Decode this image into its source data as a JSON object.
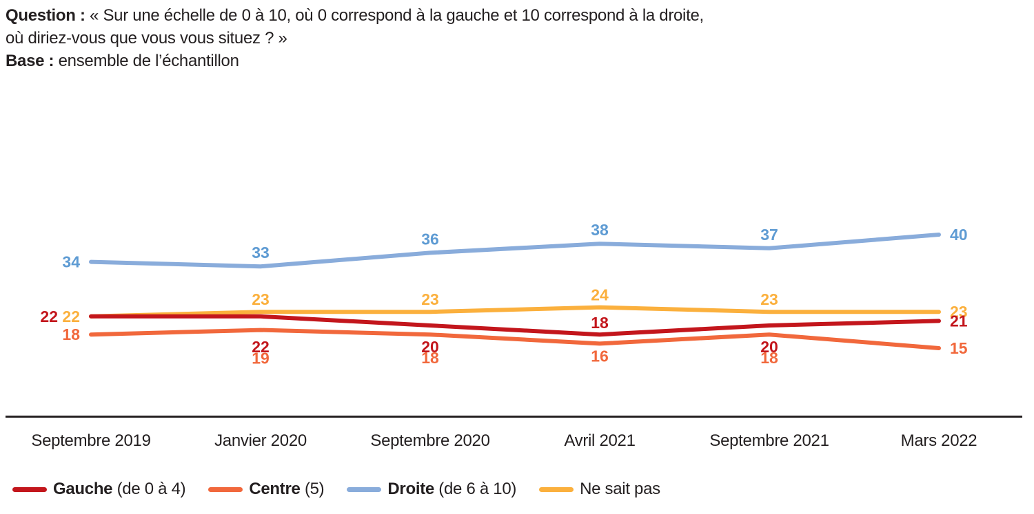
{
  "header": {
    "question_label": "Question :",
    "question_line1": " « Sur une échelle de 0 à 10, où 0 correspond à la gauche et 10 correspond à la droite,",
    "question_line2": "où diriez-vous que vous vous situez ? »",
    "base_label": "Base :",
    "base_text": " ensemble de l’échantillon"
  },
  "colors": {
    "gauche": "#C3161C",
    "centre": "#F1683C",
    "droite_line": "#89ACDB",
    "droite_label": "#5E9BD3",
    "ne_sait_pas": "#FBB03D",
    "axis": "#231F20",
    "text": "#231F20"
  },
  "chart_data": {
    "type": "line",
    "title": "",
    "xlabel": "",
    "ylabel": "",
    "x": [
      "Septembre 2019",
      "Janvier 2020",
      "Septembre 2020",
      "Avril 2021",
      "Septembre 2021",
      "Mars 2022"
    ],
    "series": [
      {
        "key": "droite",
        "name": "Droite (de 6 à 10)",
        "values": [
          34,
          33,
          36,
          38,
          37,
          40
        ]
      },
      {
        "key": "ne_sait_pas",
        "name": "Ne sait pas",
        "values": [
          22,
          23,
          23,
          24,
          23,
          23
        ]
      },
      {
        "key": "gauche",
        "name": "Gauche (de 0 à 4)",
        "values": [
          22,
          22,
          20,
          18,
          20,
          21
        ]
      },
      {
        "key": "centre",
        "name": "Centre (5)",
        "values": [
          18,
          19,
          18,
          16,
          18,
          15
        ]
      }
    ],
    "ylim": [
      0,
      45
    ],
    "grid": false,
    "value_labels_shown": true,
    "legend_position": "bottom"
  },
  "legend": [
    {
      "key": "gauche",
      "bold": "Gauche",
      "rest": " (de 0 à 4)"
    },
    {
      "key": "centre",
      "bold": "Centre",
      "rest": " (5)"
    },
    {
      "key": "droite",
      "bold": "Droite",
      "rest": " (de 6 à 10)"
    },
    {
      "key": "ne_sait_pas",
      "bold": "",
      "rest": "Ne sait pas"
    }
  ]
}
